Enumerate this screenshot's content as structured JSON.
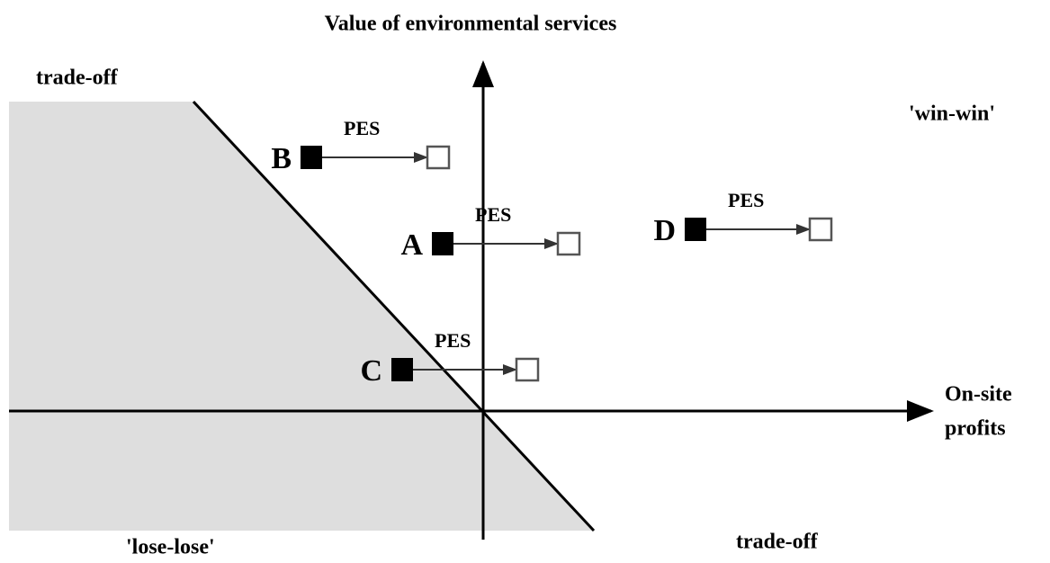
{
  "title": "Value of environmental services",
  "x_axis_label": [
    "On-site",
    "profits"
  ],
  "quadrants": {
    "top_left": "trade-off",
    "top_right": "'win-win'",
    "bottom_left": "'lose-lose'",
    "bottom_right": "trade-off"
  },
  "points": [
    {
      "label": "B",
      "arrow": "PES"
    },
    {
      "label": "A",
      "arrow": "PES"
    },
    {
      "label": "D",
      "arrow": "PES"
    },
    {
      "label": "C",
      "arrow": "PES"
    }
  ]
}
